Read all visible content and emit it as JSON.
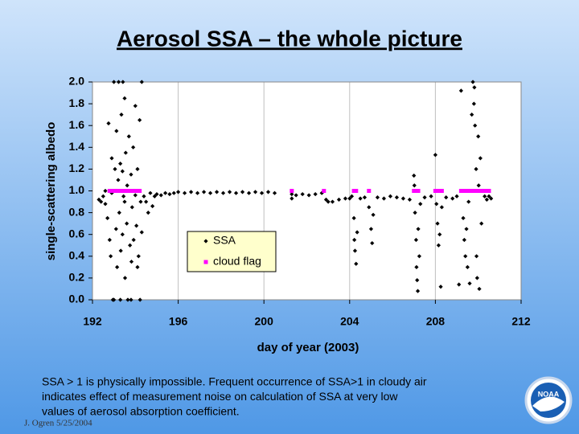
{
  "chart_data": {
    "type": "scatter",
    "title": "Aerosol SSA – the whole picture",
    "x_label": "day of year (2003)",
    "y_label": "single-scattering albedo",
    "xlim": [
      192,
      212
    ],
    "xticks": [
      192,
      196,
      200,
      204,
      208,
      212
    ],
    "ylim": [
      0,
      2
    ],
    "yticks": [
      {
        "value": 0,
        "label": "0.0"
      },
      0.2,
      0.4,
      0.6,
      0.8,
      {
        "value": 1,
        "label": "1.0"
      },
      1.2,
      1.4,
      1.6,
      1.8,
      {
        "value": 2,
        "label": "2.0"
      }
    ],
    "grid": "x",
    "series": [
      {
        "name": "SSA",
        "color": "#000000",
        "x": [
          192.3,
          192.4,
          192.5,
          192.6,
          192.7,
          192.75,
          192.8,
          192.85,
          192.9,
          192.95,
          193.0,
          193.05,
          193.1,
          193.12,
          193.15,
          193.2,
          193.22,
          193.25,
          193.3,
          193.32,
          193.35,
          193.4,
          193.42,
          193.45,
          193.5,
          193.52,
          193.55,
          193.6,
          193.62,
          193.65,
          193.7,
          193.75,
          193.8,
          193.82,
          193.85,
          193.9,
          193.92,
          193.95,
          194.0,
          194.05,
          194.1,
          194.15,
          194.2,
          194.22,
          194.25,
          194.3,
          194.3,
          192.9,
          193.0,
          193.3,
          193.5,
          193.8,
          194.1,
          193.1,
          193.4,
          192.6,
          194.0,
          194.4,
          194.5,
          194.6,
          194.7,
          194.8,
          194.9,
          195.0,
          195.2,
          195.4,
          195.6,
          195.8,
          196.0,
          196.3,
          196.6,
          196.9,
          197.2,
          197.5,
          197.8,
          198.1,
          198.4,
          198.7,
          199.0,
          199.3,
          199.6,
          199.9,
          200.2,
          200.5,
          201.3,
          201.3,
          201.5,
          201.8,
          202.1,
          202.4,
          202.7,
          202.9,
          203.0,
          203.2,
          203.5,
          203.8,
          204.0,
          204.1,
          204.2,
          204.22,
          204.25,
          204.3,
          204.35,
          204.5,
          204.7,
          204.9,
          205.0,
          205.05,
          205.1,
          205.3,
          205.6,
          205.9,
          206.2,
          206.5,
          206.8,
          207.0,
          207.02,
          207.05,
          207.1,
          207.12,
          207.15,
          207.18,
          207.2,
          207.25,
          207.3,
          207.5,
          207.8,
          208.0,
          208.05,
          208.1,
          208.15,
          208.2,
          208.25,
          208.3,
          208.5,
          208.8,
          209.0,
          209.1,
          209.2,
          209.3,
          209.35,
          209.4,
          209.45,
          209.5,
          209.55,
          209.6,
          209.7,
          209.75,
          209.8,
          209.82,
          209.85,
          209.9,
          209.92,
          209.95,
          210.0,
          210.02,
          210.05,
          210.1,
          210.15,
          210.2,
          210.3,
          210.4,
          210.5,
          210.6
        ],
        "values": [
          0.92,
          0.9,
          0.95,
          0.88,
          0.75,
          1.62,
          0.55,
          0.4,
          1.3,
          0,
          2,
          1.2,
          0.65,
          1.55,
          0.3,
          1.1,
          2,
          0.8,
          1.25,
          0.45,
          1.7,
          0.6,
          2,
          0.95,
          1.85,
          0.2,
          1.35,
          0.7,
          1.05,
          0,
          1.5,
          0.5,
          1.15,
          0.35,
          0.85,
          1.4,
          0.55,
          1,
          1.78,
          0.68,
          1.2,
          0.4,
          1.65,
          0,
          0.9,
          2,
          0.62,
          0.98,
          0,
          0,
          0.9,
          0,
          0.3,
          1,
          1.18,
          1,
          0.96,
          0.95,
          0.9,
          0.8,
          0.98,
          0.86,
          0.95,
          0.97,
          0.96,
          0.98,
          0.97,
          0.98,
          0.99,
          0.98,
          0.99,
          0.98,
          0.99,
          0.98,
          0.99,
          0.98,
          0.99,
          0.98,
          0.99,
          0.98,
          0.99,
          0.98,
          0.99,
          0.98,
          0.97,
          0.93,
          0.96,
          0.97,
          0.96,
          0.97,
          0.98,
          0.92,
          0.9,
          0.9,
          0.92,
          0.93,
          0.93,
          0.95,
          0.75,
          0.55,
          0.45,
          0.33,
          0.62,
          0.93,
          0.94,
          0.85,
          0.65,
          0.52,
          0.78,
          0.94,
          0.93,
          0.95,
          0.94,
          0.93,
          0.92,
          1.14,
          1.05,
          0.8,
          0.55,
          0.3,
          0.18,
          0.08,
          0.65,
          0.4,
          0.88,
          0.94,
          0.95,
          1.33,
          0.88,
          0.7,
          0.5,
          0.6,
          0.12,
          0.85,
          0.94,
          0.93,
          0.95,
          0.14,
          1.92,
          0.75,
          0.55,
          0.4,
          0.65,
          0.3,
          0.9,
          0.15,
          1.7,
          2,
          1.8,
          1.95,
          1.6,
          1.2,
          0.4,
          0.2,
          1.5,
          1.05,
          0.1,
          1.3,
          0.7,
          1,
          0.95,
          0.92,
          0.95,
          0.93
        ]
      },
      {
        "name": "cloud flag",
        "color": "#ff00ff",
        "x": [
          192.8,
          192.9,
          193.0,
          193.1,
          193.2,
          193.3,
          193.4,
          193.5,
          193.6,
          193.7,
          193.8,
          193.9,
          194.0,
          194.1,
          194.2,
          201.3,
          202.8,
          204.2,
          204.3,
          204.9,
          207.0,
          207.1,
          207.2,
          208.0,
          208.1,
          208.2,
          208.3,
          209.2,
          209.3,
          209.4,
          209.5,
          209.6,
          209.7,
          209.8,
          209.9,
          210.0,
          210.1,
          210.2,
          210.3,
          210.4,
          210.5
        ],
        "values": [
          1,
          1,
          1,
          1,
          1,
          1,
          1,
          1,
          1,
          1,
          1,
          1,
          1,
          1,
          1,
          1,
          1,
          1,
          1,
          1,
          1,
          1,
          1,
          1,
          1,
          1,
          1,
          1,
          1,
          1,
          1,
          1,
          1,
          1,
          1,
          1,
          1,
          1,
          1,
          1,
          1
        ]
      }
    ],
    "legend_position": "inside",
    "note": [
      "SSA > 1 is physically impossible.  Frequent occurrence of SSA>1 in cloudy air",
      "indicates effect of measurement noise on calculation of SSA at very low",
      "values of aerosol absorption coefficient."
    ],
    "credit": "J. Ogren  5/25/2004",
    "logo_text": "NOAA"
  }
}
